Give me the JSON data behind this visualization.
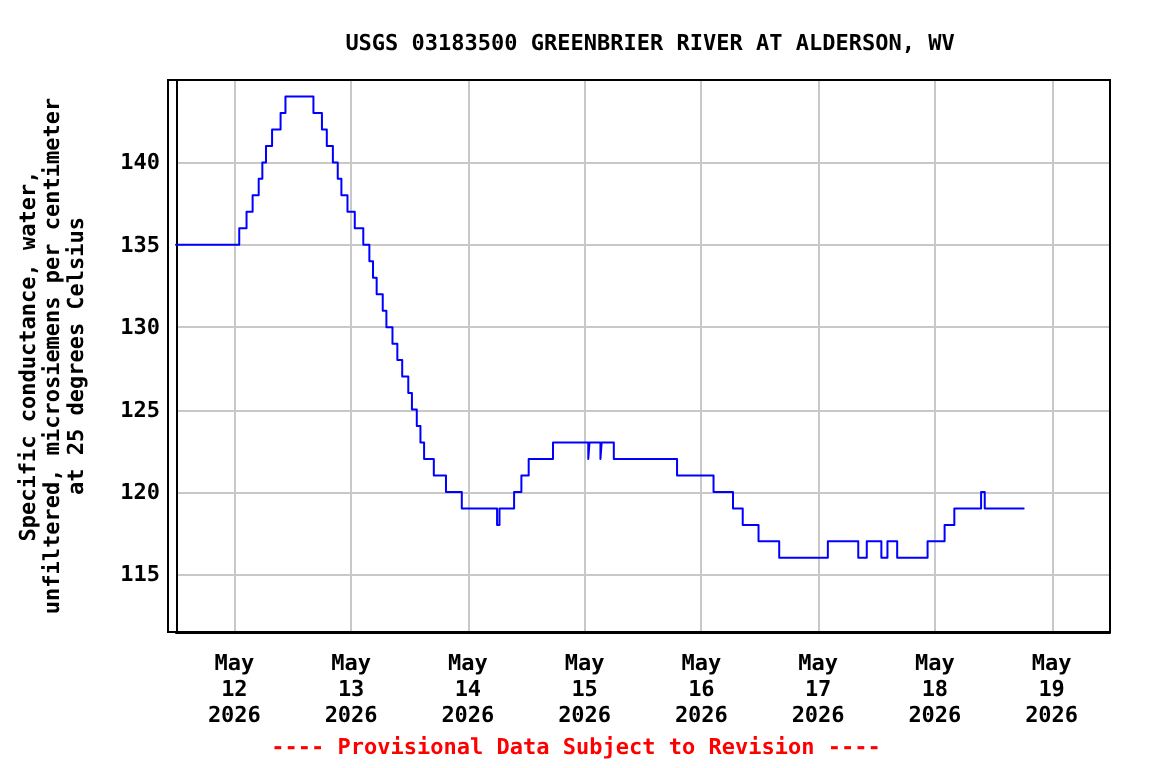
{
  "chart_data": {
    "type": "step",
    "title": "USGS 03183500 GREENBRIER RIVER AT ALDERSON, WV",
    "ylabel": "Specific conductance, water,\nunfiltered, microsiemens per centimeter\nat 25 degrees Celsius",
    "annotations": [
      "---- Provisional Data Subject to Revision ----"
    ],
    "x": [
      "2026-05-11T12:00",
      "2026-05-12T01:00",
      "2026-05-12T02:30",
      "2026-05-12T03:45",
      "2026-05-12T05:00",
      "2026-05-12T05:45",
      "2026-05-12T06:30",
      "2026-05-12T07:45",
      "2026-05-12T09:30",
      "2026-05-12T10:30",
      "2026-05-12T16:15",
      "2026-05-12T18:00",
      "2026-05-12T19:00",
      "2026-05-12T20:15",
      "2026-05-12T21:15",
      "2026-05-12T22:00",
      "2026-05-12T23:15",
      "2026-05-13T00:45",
      "2026-05-13T02:30",
      "2026-05-13T03:45",
      "2026-05-13T04:30",
      "2026-05-13T05:15",
      "2026-05-13T06:30",
      "2026-05-13T07:15",
      "2026-05-13T08:30",
      "2026-05-13T09:30",
      "2026-05-13T10:30",
      "2026-05-13T11:45",
      "2026-05-13T12:30",
      "2026-05-13T13:30",
      "2026-05-13T14:15",
      "2026-05-13T15:00",
      "2026-05-13T17:00",
      "2026-05-13T19:30",
      "2026-05-13T22:45",
      "2026-05-14T06:00",
      "2026-05-14T06:30",
      "2026-05-14T09:30",
      "2026-05-14T11:00",
      "2026-05-14T12:30",
      "2026-05-14T17:30",
      "2026-05-15T00:45",
      "2026-05-15T01:00",
      "2026-05-15T03:15",
      "2026-05-15T03:30",
      "2026-05-15T06:00",
      "2026-05-15T19:00",
      "2026-05-16T02:30",
      "2026-05-16T06:30",
      "2026-05-16T08:30",
      "2026-05-16T11:45",
      "2026-05-16T16:00",
      "2026-05-17T02:00",
      "2026-05-17T08:15",
      "2026-05-17T10:00",
      "2026-05-17T13:00",
      "2026-05-17T14:15",
      "2026-05-17T16:15",
      "2026-05-17T22:30",
      "2026-05-18T02:00",
      "2026-05-18T04:00",
      "2026-05-18T09:30",
      "2026-05-18T10:15",
      "2026-05-18T18:15"
    ],
    "series": [
      {
        "color": "#0000ff",
        "values": [
          135,
          136,
          137,
          138,
          139,
          140,
          141,
          142,
          143,
          144,
          143,
          142,
          141,
          140,
          139,
          138,
          137,
          136,
          135,
          134,
          133,
          132,
          131,
          130,
          129,
          128,
          127,
          126,
          125,
          124,
          123,
          122,
          121,
          120,
          119,
          118,
          119,
          120,
          121,
          122,
          123,
          122,
          123,
          122,
          123,
          122,
          121,
          120,
          119,
          118,
          117,
          116,
          117,
          116,
          117,
          116,
          117,
          116,
          117,
          118,
          119,
          120,
          119,
          119
        ]
      }
    ],
    "xlim": [
      "2026-05-11T12:00",
      "2026-05-19T12:00"
    ],
    "xticks": [
      {
        "value": "2026-05-12",
        "label": "May\n12\n2026"
      },
      {
        "value": "2026-05-13",
        "label": "May\n13\n2026"
      },
      {
        "value": "2026-05-14",
        "label": "May\n14\n2026"
      },
      {
        "value": "2026-05-15",
        "label": "May\n15\n2026"
      },
      {
        "value": "2026-05-16",
        "label": "May\n16\n2026"
      },
      {
        "value": "2026-05-17",
        "label": "May\n17\n2026"
      },
      {
        "value": "2026-05-18",
        "label": "May\n18\n2026"
      },
      {
        "value": "2026-05-19",
        "label": "May\n19\n2026"
      }
    ],
    "ylim": [
      111.5,
      145
    ],
    "yticks": [
      115,
      120,
      125,
      130,
      135,
      140
    ],
    "grid": true,
    "line_style": "solid",
    "marker": "none"
  }
}
